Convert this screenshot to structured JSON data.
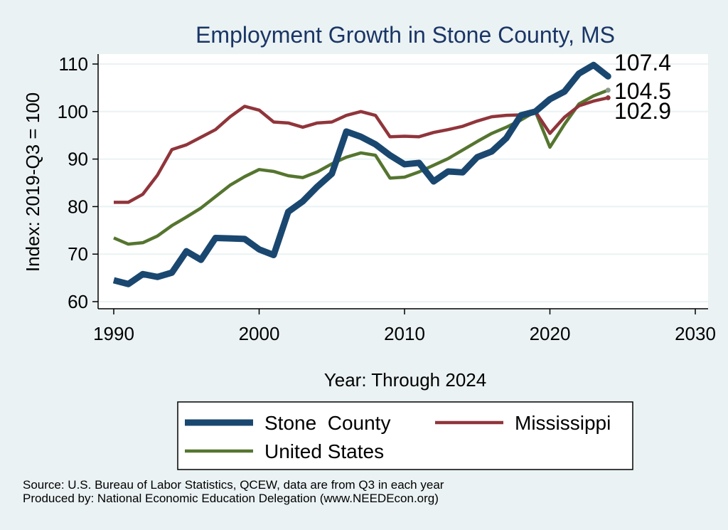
{
  "chart_data": {
    "type": "line",
    "title": "Employment Growth in Stone County, MS",
    "xlabel": "Year: Through 2024",
    "ylabel": "Index: 2019-Q3 = 100",
    "xlim": [
      1990,
      2030
    ],
    "ylim": [
      60,
      110
    ],
    "x_ticks": [
      "1990",
      "2000",
      "2010",
      "2020",
      "2030"
    ],
    "y_ticks": [
      "60",
      "70",
      "80",
      "90",
      "100",
      "110"
    ],
    "grid": true,
    "legend_position": "bottom",
    "x": [
      1990,
      1991,
      1992,
      1993,
      1994,
      1995,
      1996,
      1997,
      1998,
      1999,
      2000,
      2001,
      2002,
      2003,
      2004,
      2005,
      2006,
      2007,
      2008,
      2009,
      2010,
      2011,
      2012,
      2013,
      2014,
      2015,
      2016,
      2017,
      2018,
      2019,
      2020,
      2021,
      2022,
      2023,
      2024
    ],
    "series": [
      {
        "name": "Stone  County",
        "color": "#1a476f",
        "values": [
          64.5,
          63.7,
          65.8,
          65.2,
          66.1,
          70.6,
          68.8,
          73.4,
          73.3,
          73.2,
          71.0,
          69.8,
          78.9,
          81.1,
          84.2,
          86.9,
          95.8,
          94.7,
          93.1,
          90.8,
          88.9,
          89.2,
          85.3,
          87.4,
          87.2,
          90.4,
          91.6,
          94.4,
          99.2,
          100.0,
          102.6,
          104.2,
          108.0,
          109.8,
          107.4
        ],
        "end_label": "107.4"
      },
      {
        "name": "Mississippi",
        "color": "#90353b",
        "values": [
          80.9,
          80.9,
          82.6,
          86.6,
          92.0,
          93.0,
          94.6,
          96.2,
          98.9,
          101.1,
          100.3,
          97.8,
          97.6,
          96.7,
          97.6,
          97.8,
          99.2,
          100.0,
          99.2,
          94.7,
          94.8,
          94.7,
          95.6,
          96.2,
          96.9,
          98.0,
          98.9,
          99.2,
          99.3,
          100.0,
          95.4,
          98.8,
          101.2,
          102.2,
          102.9
        ],
        "end_label": "102.9"
      },
      {
        "name": "United States",
        "color": "#55752f",
        "values": [
          73.4,
          72.1,
          72.4,
          73.8,
          76.0,
          77.8,
          79.7,
          82.1,
          84.5,
          86.3,
          87.8,
          87.4,
          86.5,
          86.1,
          87.3,
          89.0,
          90.4,
          91.3,
          90.8,
          86.0,
          86.2,
          87.3,
          88.7,
          90.1,
          91.9,
          93.7,
          95.4,
          96.7,
          98.2,
          100.0,
          92.5,
          97.3,
          101.6,
          103.3,
          104.5
        ],
        "end_label": "104.5"
      }
    ]
  },
  "source_line1": "Source: U.S. Bureau of Labor Statistics, QCEW, data are from Q3 in each year",
  "source_line2": "Produced by: National Economic Education Delegation (www.NEEDEcon.org)"
}
